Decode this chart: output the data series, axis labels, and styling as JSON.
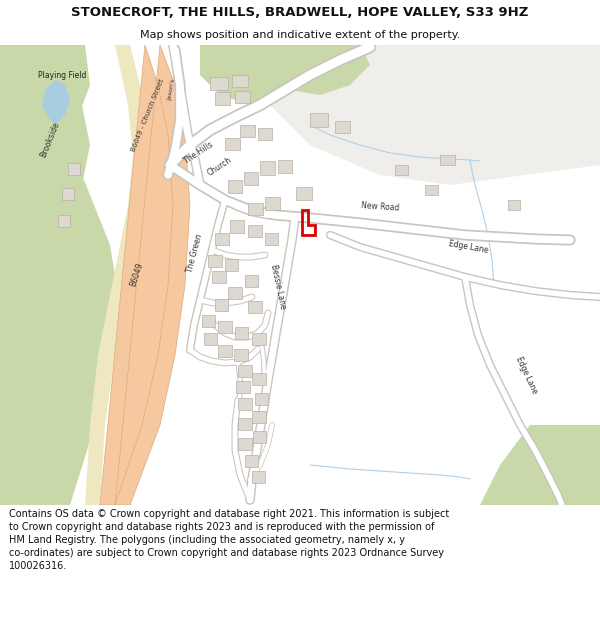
{
  "title": "STONECROFT, THE HILLS, BRADWELL, HOPE VALLEY, S33 9HZ",
  "subtitle": "Map shows position and indicative extent of the property.",
  "footer_line1": "Contains OS data © Crown copyright and database right 2021. This information is subject",
  "footer_line2": "to Crown copyright and database rights 2023 and is reproduced with the permission of",
  "footer_line3": "HM Land Registry. The polygons (including the associated geometry, namely x, y",
  "footer_line4": "co-ordinates) are subject to Crown copyright and database rights 2023 Ordnance Survey",
  "footer_line5": "100026316.",
  "bg_color": "#f0eeeb",
  "road_fill": "#ffffff",
  "road_edge": "#c8c4be",
  "b_road_fill": "#f5c8a0",
  "b_road_edge": "#e0a878",
  "green_fill": "#c8d8a8",
  "water_fill": "#a8cce0",
  "building_fill": "#ddd8d0",
  "building_edge": "#b8b0a8",
  "property_red": "#dd0000",
  "light_blue": "#b0d0e8",
  "white": "#ffffff"
}
